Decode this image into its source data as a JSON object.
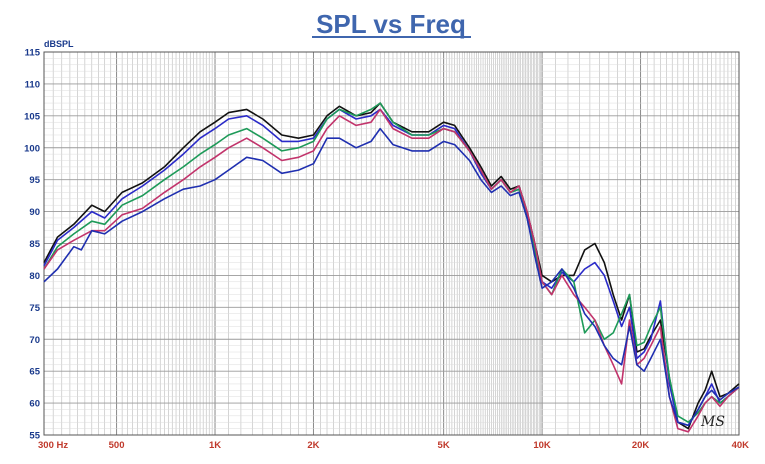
{
  "chart_data": {
    "type": "line",
    "title": "SPL vs Freq",
    "ylabel": "dBSPL",
    "xscale": "log",
    "xlim": [
      300,
      40000
    ],
    "ylim": [
      55,
      115
    ],
    "yticks": [
      55,
      60,
      65,
      70,
      75,
      80,
      85,
      90,
      95,
      100,
      105,
      110,
      115
    ],
    "xtick_labels": [
      {
        "f": 300,
        "label": "300 Hz"
      },
      {
        "f": 500,
        "label": "500"
      },
      {
        "f": 1000,
        "label": "1K"
      },
      {
        "f": 2000,
        "label": "2K"
      },
      {
        "f": 5000,
        "label": "5K"
      },
      {
        "f": 10000,
        "label": "10K"
      },
      {
        "f": 20000,
        "label": "20K"
      },
      {
        "f": 40000,
        "label": "40K"
      }
    ],
    "grid": true,
    "colors": {
      "title": "#3f66ae",
      "xticks": "#c0392b",
      "yticks": "#1a3a8c",
      "grid": "#b9b9b9"
    },
    "signature": "MS",
    "series": [
      {
        "color": "#111111",
        "points": [
          [
            300,
            82
          ],
          [
            330,
            86
          ],
          [
            370,
            88
          ],
          [
            420,
            91
          ],
          [
            460,
            90
          ],
          [
            520,
            93
          ],
          [
            600,
            94.5
          ],
          [
            700,
            97
          ],
          [
            800,
            100
          ],
          [
            900,
            102.5
          ],
          [
            1000,
            104
          ],
          [
            1100,
            105.5
          ],
          [
            1250,
            106
          ],
          [
            1400,
            104.5
          ],
          [
            1600,
            102
          ],
          [
            1800,
            101.5
          ],
          [
            2000,
            102
          ],
          [
            2200,
            105
          ],
          [
            2400,
            106.5
          ],
          [
            2700,
            105
          ],
          [
            3000,
            105.5
          ],
          [
            3200,
            107
          ],
          [
            3500,
            104
          ],
          [
            4000,
            102.5
          ],
          [
            4500,
            102.5
          ],
          [
            5000,
            104
          ],
          [
            5400,
            103.5
          ],
          [
            6000,
            100
          ],
          [
            6500,
            97
          ],
          [
            7000,
            94
          ],
          [
            7500,
            95.5
          ],
          [
            8000,
            93.5
          ],
          [
            8500,
            94
          ],
          [
            9000,
            90
          ],
          [
            9500,
            85
          ],
          [
            10000,
            80
          ],
          [
            10700,
            79
          ],
          [
            11500,
            80
          ],
          [
            12500,
            80
          ],
          [
            13500,
            84
          ],
          [
            14500,
            85
          ],
          [
            15500,
            82
          ],
          [
            16500,
            77
          ],
          [
            17500,
            73
          ],
          [
            18500,
            77
          ],
          [
            19500,
            68
          ],
          [
            20500,
            68.5
          ],
          [
            21500,
            70.5
          ],
          [
            23000,
            73
          ],
          [
            24500,
            64
          ],
          [
            26000,
            57
          ],
          [
            28000,
            56
          ],
          [
            30000,
            60
          ],
          [
            31500,
            62
          ],
          [
            33000,
            65
          ],
          [
            35000,
            61
          ],
          [
            37000,
            61.5
          ],
          [
            40000,
            63
          ]
        ]
      },
      {
        "color": "#2a2ac8",
        "points": [
          [
            300,
            81.5
          ],
          [
            330,
            85.5
          ],
          [
            370,
            87.5
          ],
          [
            420,
            90
          ],
          [
            460,
            89
          ],
          [
            520,
            92
          ],
          [
            600,
            94
          ],
          [
            700,
            96.5
          ],
          [
            800,
            99
          ],
          [
            900,
            101.5
          ],
          [
            1000,
            103
          ],
          [
            1100,
            104.5
          ],
          [
            1250,
            105
          ],
          [
            1400,
            103.5
          ],
          [
            1600,
            101
          ],
          [
            1800,
            101
          ],
          [
            2000,
            101.5
          ],
          [
            2200,
            104.5
          ],
          [
            2400,
            106
          ],
          [
            2700,
            104.5
          ],
          [
            3000,
            105
          ],
          [
            3200,
            106
          ],
          [
            3500,
            103.5
          ],
          [
            4000,
            102
          ],
          [
            4500,
            102
          ],
          [
            5000,
            103.5
          ],
          [
            5400,
            103
          ],
          [
            6000,
            99.5
          ],
          [
            6500,
            96
          ],
          [
            7000,
            93.5
          ],
          [
            7500,
            95
          ],
          [
            8000,
            93
          ],
          [
            8500,
            93.5
          ],
          [
            9000,
            89
          ],
          [
            9500,
            84
          ],
          [
            10000,
            79
          ],
          [
            10700,
            78
          ],
          [
            11500,
            80.5
          ],
          [
            12500,
            79
          ],
          [
            13500,
            81
          ],
          [
            14500,
            82
          ],
          [
            15500,
            80
          ],
          [
            16500,
            76
          ],
          [
            17500,
            72
          ],
          [
            18500,
            75
          ],
          [
            19500,
            67
          ],
          [
            20500,
            68
          ],
          [
            21500,
            70
          ],
          [
            23000,
            76
          ],
          [
            24500,
            63
          ],
          [
            26000,
            57
          ],
          [
            28000,
            56.5
          ],
          [
            30000,
            59
          ],
          [
            31500,
            61
          ],
          [
            33000,
            63
          ],
          [
            35000,
            60
          ],
          [
            37000,
            61
          ],
          [
            40000,
            62.5
          ]
        ]
      },
      {
        "color": "#1d9a58",
        "points": [
          [
            300,
            81
          ],
          [
            330,
            84.5
          ],
          [
            370,
            86.5
          ],
          [
            420,
            88.5
          ],
          [
            460,
            88
          ],
          [
            520,
            91
          ],
          [
            600,
            92.5
          ],
          [
            700,
            95
          ],
          [
            800,
            97
          ],
          [
            900,
            99
          ],
          [
            1000,
            100.5
          ],
          [
            1100,
            102
          ],
          [
            1250,
            103
          ],
          [
            1400,
            101.5
          ],
          [
            1600,
            99.5
          ],
          [
            1800,
            100
          ],
          [
            2000,
            101
          ],
          [
            2200,
            104.5
          ],
          [
            2400,
            106
          ],
          [
            2700,
            105
          ],
          [
            3000,
            106
          ],
          [
            3200,
            107
          ],
          [
            3500,
            104
          ],
          [
            4000,
            102
          ],
          [
            4500,
            102
          ],
          [
            5000,
            103
          ],
          [
            5400,
            102.5
          ],
          [
            6000,
            99.5
          ],
          [
            6500,
            96.5
          ],
          [
            7000,
            93.5
          ],
          [
            7500,
            95
          ],
          [
            8000,
            93
          ],
          [
            8500,
            93.5
          ],
          [
            9000,
            89
          ],
          [
            9500,
            84
          ],
          [
            10000,
            79
          ],
          [
            10700,
            77
          ],
          [
            11500,
            81
          ],
          [
            12500,
            79
          ],
          [
            13500,
            71
          ],
          [
            14500,
            73
          ],
          [
            15500,
            70
          ],
          [
            16500,
            71
          ],
          [
            17500,
            74
          ],
          [
            18500,
            77
          ],
          [
            19500,
            69
          ],
          [
            20500,
            69.5
          ],
          [
            21500,
            72
          ],
          [
            23000,
            75
          ],
          [
            24500,
            64
          ],
          [
            26000,
            58
          ],
          [
            28000,
            57
          ],
          [
            30000,
            58.5
          ],
          [
            31500,
            60
          ],
          [
            33000,
            61
          ],
          [
            35000,
            60
          ],
          [
            37000,
            61
          ],
          [
            40000,
            62.5
          ]
        ]
      },
      {
        "color": "#c2336b",
        "points": [
          [
            300,
            81
          ],
          [
            330,
            84
          ],
          [
            370,
            85.5
          ],
          [
            420,
            87
          ],
          [
            460,
            87
          ],
          [
            520,
            89.5
          ],
          [
            600,
            90.5
          ],
          [
            700,
            93
          ],
          [
            800,
            95
          ],
          [
            900,
            97
          ],
          [
            1000,
            98.5
          ],
          [
            1100,
            100
          ],
          [
            1250,
            101.5
          ],
          [
            1400,
            100
          ],
          [
            1600,
            98
          ],
          [
            1800,
            98.5
          ],
          [
            2000,
            99.5
          ],
          [
            2200,
            103
          ],
          [
            2400,
            105
          ],
          [
            2700,
            103.5
          ],
          [
            3000,
            104
          ],
          [
            3200,
            106
          ],
          [
            3500,
            103
          ],
          [
            4000,
            101.5
          ],
          [
            4500,
            101.5
          ],
          [
            5000,
            103
          ],
          [
            5400,
            102.5
          ],
          [
            6000,
            99.5
          ],
          [
            6500,
            96.5
          ],
          [
            7000,
            93.5
          ],
          [
            7500,
            95
          ],
          [
            8000,
            93
          ],
          [
            8500,
            94
          ],
          [
            9000,
            90
          ],
          [
            9500,
            85
          ],
          [
            10000,
            79
          ],
          [
            10700,
            77
          ],
          [
            11500,
            80
          ],
          [
            12500,
            77
          ],
          [
            13500,
            75
          ],
          [
            14500,
            73
          ],
          [
            15500,
            69
          ],
          [
            16500,
            66
          ],
          [
            17500,
            63
          ],
          [
            18500,
            73
          ],
          [
            19500,
            66
          ],
          [
            20500,
            67
          ],
          [
            21500,
            69
          ],
          [
            23000,
            72
          ],
          [
            24500,
            61
          ],
          [
            26000,
            56
          ],
          [
            28000,
            55.5
          ],
          [
            30000,
            58
          ],
          [
            31500,
            60
          ],
          [
            33000,
            61
          ],
          [
            35000,
            59.5
          ],
          [
            37000,
            61
          ],
          [
            40000,
            62.5
          ]
        ]
      },
      {
        "color": "#1f2fb0",
        "points": [
          [
            300,
            79
          ],
          [
            330,
            81
          ],
          [
            370,
            84.5
          ],
          [
            390,
            84
          ],
          [
            420,
            87
          ],
          [
            460,
            86.5
          ],
          [
            520,
            88.5
          ],
          [
            600,
            90
          ],
          [
            700,
            92
          ],
          [
            800,
            93.5
          ],
          [
            900,
            94
          ],
          [
            1000,
            95
          ],
          [
            1100,
            96.5
          ],
          [
            1250,
            98.5
          ],
          [
            1400,
            98
          ],
          [
            1600,
            96
          ],
          [
            1800,
            96.5
          ],
          [
            2000,
            97.5
          ],
          [
            2200,
            101.5
          ],
          [
            2400,
            101.5
          ],
          [
            2700,
            100
          ],
          [
            3000,
            101
          ],
          [
            3200,
            103
          ],
          [
            3500,
            100.5
          ],
          [
            4000,
            99.5
          ],
          [
            4500,
            99.5
          ],
          [
            5000,
            101
          ],
          [
            5400,
            100.5
          ],
          [
            6000,
            98
          ],
          [
            6500,
            95
          ],
          [
            7000,
            93
          ],
          [
            7500,
            94
          ],
          [
            8000,
            92.5
          ],
          [
            8500,
            93
          ],
          [
            9000,
            89
          ],
          [
            9500,
            83
          ],
          [
            10000,
            78
          ],
          [
            10700,
            79
          ],
          [
            11500,
            81
          ],
          [
            12500,
            78
          ],
          [
            13500,
            74
          ],
          [
            14500,
            72
          ],
          [
            15500,
            69
          ],
          [
            16500,
            67
          ],
          [
            17500,
            66
          ],
          [
            18500,
            72
          ],
          [
            19500,
            66
          ],
          [
            20500,
            65
          ],
          [
            21500,
            67
          ],
          [
            23000,
            70
          ],
          [
            24500,
            61
          ],
          [
            26000,
            57
          ],
          [
            28000,
            56.5
          ],
          [
            30000,
            59
          ],
          [
            31500,
            61
          ],
          [
            33000,
            62
          ],
          [
            35000,
            60.5
          ],
          [
            37000,
            61.5
          ],
          [
            40000,
            62.5
          ]
        ]
      }
    ]
  }
}
